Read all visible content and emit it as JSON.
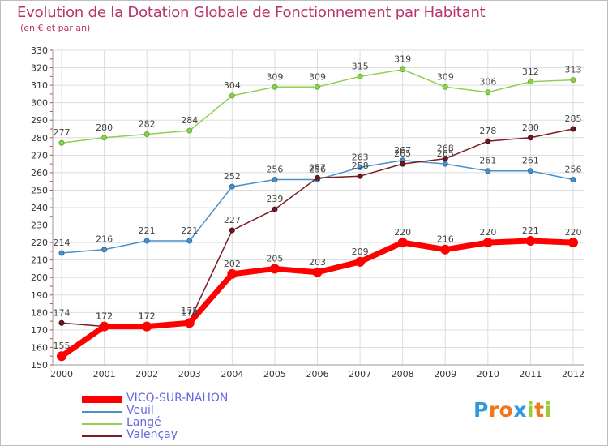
{
  "chart_data": {
    "type": "line",
    "title": "Evolution de la Dotation Globale de Fonctionnement par Habitant",
    "subtitle": "(en € et par an)",
    "x": [
      "2000",
      "2001",
      "2002",
      "2003",
      "2004",
      "2005",
      "2006",
      "2007",
      "2008",
      "2009",
      "2010",
      "2011",
      "2012"
    ],
    "ylim": [
      150,
      330
    ],
    "yticks": [
      150,
      160,
      170,
      180,
      190,
      200,
      210,
      220,
      230,
      240,
      250,
      260,
      270,
      280,
      290,
      300,
      310,
      320,
      330
    ],
    "grid": true,
    "legend_position": "bottom-left",
    "series": [
      {
        "name": "VICQ-SUR-NAHON",
        "color": "#ff0000",
        "values": [
          155,
          172,
          172,
          174,
          202,
          205,
          203,
          209,
          220,
          216,
          220,
          221,
          220
        ]
      },
      {
        "name": "Veuil",
        "color": "#4a90c8",
        "values": [
          214,
          216,
          221,
          221,
          252,
          256,
          256,
          263,
          267,
          265,
          261,
          261,
          256
        ]
      },
      {
        "name": "Langé",
        "color": "#8fd14f",
        "values": [
          277,
          280,
          282,
          284,
          304,
          309,
          309,
          315,
          319,
          309,
          306,
          312,
          313
        ]
      },
      {
        "name": "Valençay",
        "color": "#7a1c24",
        "values": [
          174,
          172,
          172,
          175,
          227,
          239,
          257,
          258,
          265,
          268,
          278,
          280,
          285
        ]
      }
    ]
  },
  "legend_text_color": "#6666dd",
  "logo": {
    "letters": [
      "P",
      "r",
      "o",
      "x",
      "i",
      "t",
      "i"
    ],
    "colors": [
      "#3399dd",
      "#ee7722",
      "#ee7722",
      "#3399dd",
      "#99cc33",
      "#ee7722",
      "#99cc33"
    ]
  }
}
